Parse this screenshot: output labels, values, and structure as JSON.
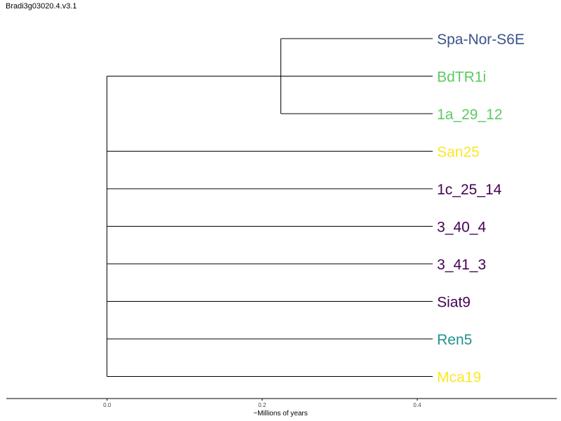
{
  "title": "Bradi3g03020.4.v3.1",
  "chart_data": {
    "type": "dendrogram",
    "title": "Bradi3g03020.4.v3.1",
    "xlabel": "~Millions of years",
    "xlim": [
      -0.13,
      0.58
    ],
    "x_ticks": [
      0.0,
      0.2,
      0.4
    ],
    "x_tick_labels": [
      "0.0",
      "0.2",
      "0.4"
    ],
    "tips": [
      {
        "label": "Spa-Nor-S6E",
        "color": "#3b528b"
      },
      {
        "label": "BdTR1i",
        "color": "#5ec962"
      },
      {
        "label": "1a_29_12",
        "color": "#5ec962"
      },
      {
        "label": "San25",
        "color": "#fde725"
      },
      {
        "label": "1c_25_14",
        "color": "#440154"
      },
      {
        "label": "3_40_4",
        "color": "#440154"
      },
      {
        "label": "3_41_3",
        "color": "#440154"
      },
      {
        "label": "Siat9",
        "color": "#440154"
      },
      {
        "label": "Ren5",
        "color": "#21918c"
      },
      {
        "label": "Mca19",
        "color": "#fde725"
      }
    ],
    "tip_x": 0.42,
    "clades": [
      {
        "members": [
          "Spa-Nor-S6E",
          "1a_29_12"
        ],
        "height": 0.224
      },
      {
        "members": [
          "BdTR1i",
          "San25",
          "1c_25_14",
          "3_40_4",
          "3_41_3",
          "Siat9",
          "Ren5",
          "Mca19"
        ],
        "height": 0.0
      }
    ]
  }
}
